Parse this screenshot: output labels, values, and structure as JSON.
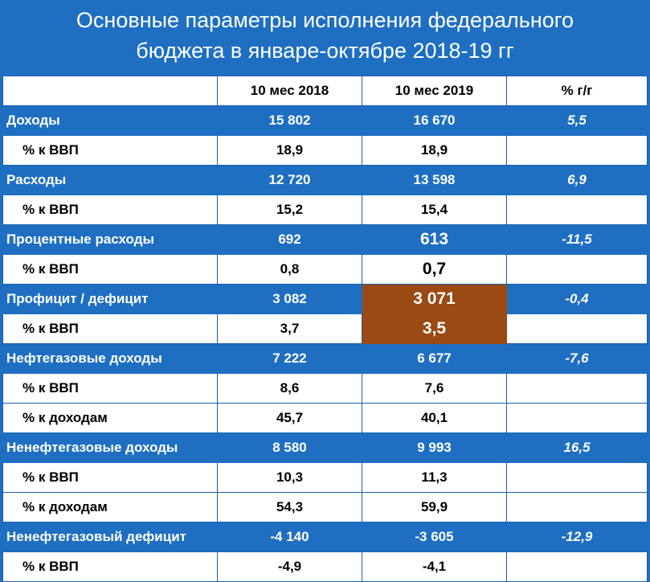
{
  "title": {
    "line1": "Основные параметры исполнения федерального",
    "line2": "бюджета в январе-октябре 2018-19 гг"
  },
  "colors": {
    "blue": "#1e6fc1",
    "highlight": "#9a4a12",
    "white": "#ffffff"
  },
  "table": {
    "headers": [
      "",
      "10 мес 2018",
      "10 мес 2019",
      "% г/г"
    ],
    "rows": [
      {
        "label": "Доходы",
        "v2018": "15 802",
        "v2019": "16 670",
        "yoy": "5,5",
        "style": "blue"
      },
      {
        "label": "% к ВВП",
        "v2018": "18,9",
        "v2019": "18,9",
        "yoy": "",
        "style": "white"
      },
      {
        "label": "Расходы",
        "v2018": "12 720",
        "v2019": "13 598",
        "yoy": "6,9",
        "style": "blue"
      },
      {
        "label": "% к ВВП",
        "v2018": "15,2",
        "v2019": "15,4",
        "yoy": "",
        "style": "white"
      },
      {
        "label": "Процентные расходы",
        "v2018": "692",
        "v2019": "613",
        "yoy": "-11,5",
        "style": "blue"
      },
      {
        "label": "% к ВВП",
        "v2018": "0,8",
        "v2019": "0,7",
        "yoy": "",
        "style": "white"
      },
      {
        "label": "Профицит / дефицит",
        "v2018": "3 082",
        "v2019": "3 071",
        "yoy": "-0,4",
        "style": "blue"
      },
      {
        "label": "% к ВВП",
        "v2018": "3,7",
        "v2019": "3,5",
        "yoy": "",
        "style": "white"
      },
      {
        "label": "Нефтегазовые доходы",
        "v2018": "7 222",
        "v2019": "6 677",
        "yoy": "-7,6",
        "style": "blue"
      },
      {
        "label": "% к ВВП",
        "v2018": "8,6",
        "v2019": "7,6",
        "yoy": "",
        "style": "white"
      },
      {
        "label": "% к доходам",
        "v2018": "45,7",
        "v2019": "40,1",
        "yoy": "",
        "style": "white"
      },
      {
        "label": "Ненефтегазовые доходы",
        "v2018": "8 580",
        "v2019": "9 993",
        "yoy": "16,5",
        "style": "blue"
      },
      {
        "label": "% к ВВП",
        "v2018": "10,3",
        "v2019": "11,3",
        "yoy": "",
        "style": "white"
      },
      {
        "label": "% к доходам",
        "v2018": "54,3",
        "v2019": "59,9",
        "yoy": "",
        "style": "white"
      },
      {
        "label": "Ненефтегазовый дефицит",
        "v2018": "-4 140",
        "v2019": "-3 605",
        "yoy": "-12,9",
        "style": "blue"
      },
      {
        "label": "% к ВВП",
        "v2018": "-4,9",
        "v2019": "-4,1",
        "yoy": "",
        "style": "white"
      }
    ]
  }
}
